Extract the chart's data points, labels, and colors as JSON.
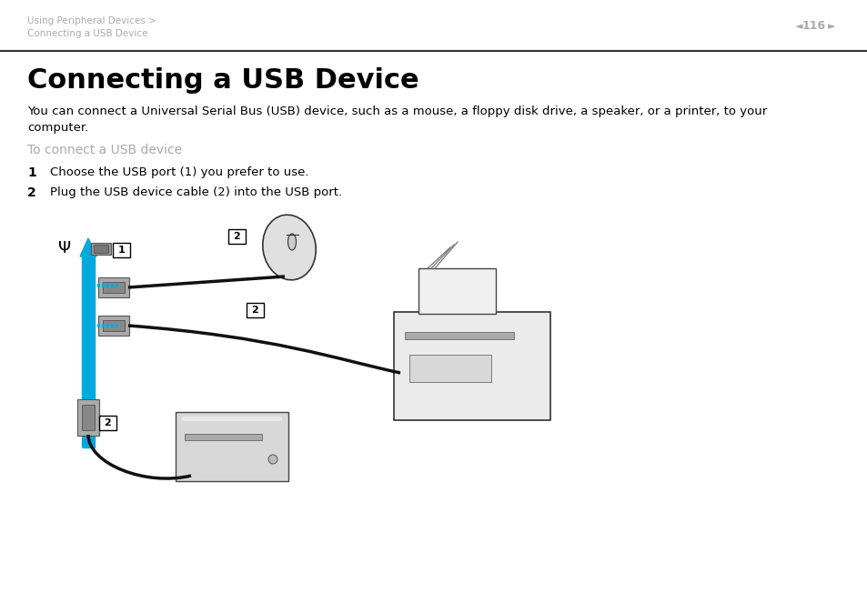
{
  "bg_color": "#ffffff",
  "header_line1": "Using Peripheral Devices >",
  "header_line2": "Connecting a USB Device",
  "page_num": "116",
  "title": "Connecting a USB Device",
  "body_text": "You can connect a Universal Serial Bus (USB) device, such as a mouse, a floppy disk drive, a speaker, or a printer, to your\ncomputer.",
  "subtitle": "To connect a USB device",
  "step1_num": "1",
  "step1_text": "Choose the USB port (1) you prefer to use.",
  "step2_num": "2",
  "step2_text": "Plug the USB device cable (2) into the USB port.",
  "header_color": "#aaaaaa",
  "title_color": "#000000",
  "body_color": "#000000",
  "subtitle_color": "#aaaaaa",
  "step_color": "#000000",
  "accent_blue": "#00aadd",
  "dashed_blue": "#00aadd",
  "line_color": "#000000",
  "figure_gray": "#888888",
  "figure_light": "#cccccc",
  "figure_dark": "#333333"
}
